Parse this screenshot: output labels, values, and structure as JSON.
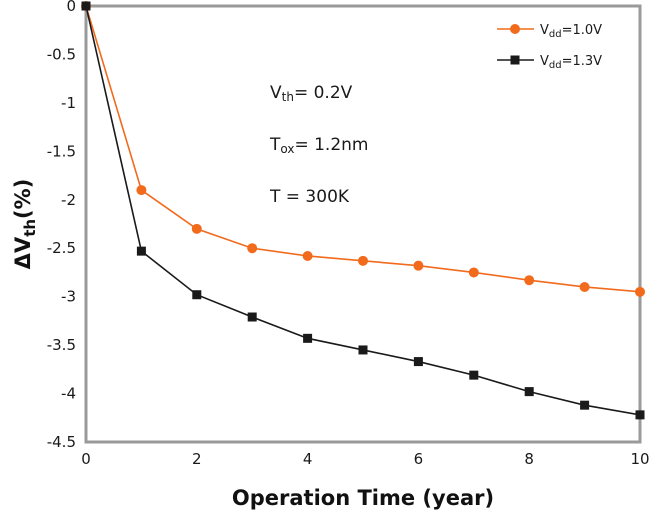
{
  "chart_data": {
    "type": "line",
    "x": [
      0,
      1,
      2,
      3,
      4,
      5,
      6,
      7,
      8,
      9,
      10
    ],
    "xlabel": "Operation Time (year)",
    "ylabel": {
      "delta": "ΔV",
      "sub": "th",
      "rest": "(%)"
    },
    "xlim": [
      0,
      10
    ],
    "ylim": [
      -4.5,
      0
    ],
    "xticks": [
      "0",
      "2",
      "4",
      "6",
      "8",
      "10"
    ],
    "yticks": [
      "0",
      "-0.5",
      "-1",
      "-1.5",
      "-2",
      "-2.5",
      "-3",
      "-3.5",
      "-4",
      "-4.5"
    ],
    "grid": false,
    "legend_position": "top-right",
    "series": [
      {
        "name": "Vdd=1.0V",
        "legend": {
          "main": "V",
          "sub": "dd",
          "rest": "=1.0V"
        },
        "color": "#f26b1d",
        "marker": "circle",
        "values": [
          0,
          -1.9,
          -2.3,
          -2.5,
          -2.58,
          -2.63,
          -2.68,
          -2.75,
          -2.83,
          -2.9,
          -2.95
        ]
      },
      {
        "name": "Vdd=1.3V",
        "legend": {
          "main": "V",
          "sub": "dd",
          "rest": "=1.3V"
        },
        "color": "#1a1a1a",
        "marker": "square",
        "values": [
          0,
          -2.53,
          -2.98,
          -3.21,
          -3.43,
          -3.55,
          -3.67,
          -3.81,
          -3.98,
          -4.12,
          -4.22
        ]
      }
    ],
    "annotations": [
      {
        "main": "V",
        "sub": "th",
        "rest": "= 0.2V"
      },
      {
        "main": "T",
        "sub": "ox",
        "rest": "= 1.2nm"
      },
      {
        "main": "T = 300K",
        "sub": "",
        "rest": ""
      }
    ]
  },
  "colors": {
    "axis_frame": "#9a9a9a"
  }
}
